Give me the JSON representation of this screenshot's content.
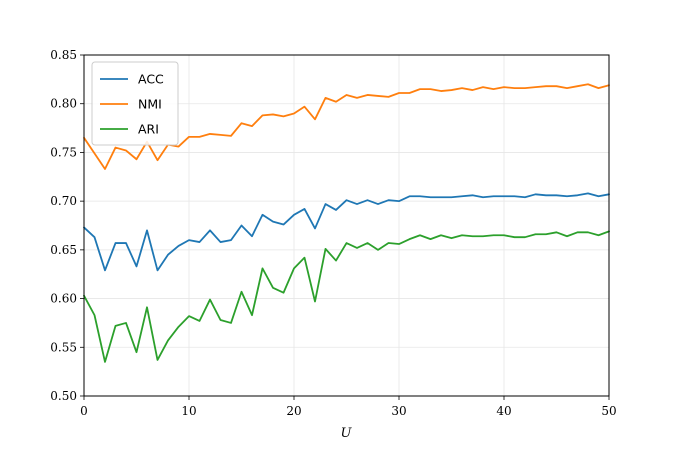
{
  "chart_data": {
    "type": "line",
    "xlabel": "U",
    "ylabel": "",
    "xlim": [
      0,
      50
    ],
    "ylim": [
      0.5,
      0.85
    ],
    "xticks": [
      0,
      10,
      20,
      30,
      40,
      50
    ],
    "yticks": [
      0.5,
      0.55,
      0.6,
      0.65,
      0.7,
      0.75,
      0.8,
      0.85
    ],
    "grid": true,
    "legend": "top-left",
    "x": [
      0,
      1,
      2,
      3,
      4,
      5,
      6,
      7,
      8,
      9,
      10,
      11,
      12,
      13,
      14,
      15,
      16,
      17,
      18,
      19,
      20,
      21,
      22,
      23,
      24,
      25,
      26,
      27,
      28,
      29,
      30,
      31,
      32,
      33,
      34,
      35,
      36,
      37,
      38,
      39,
      40,
      41,
      42,
      43,
      44,
      45,
      46,
      47,
      48,
      49,
      50
    ],
    "series": [
      {
        "name": "ACC",
        "color": "#1f77b4",
        "values": [
          0.673,
          0.663,
          0.629,
          0.657,
          0.657,
          0.633,
          0.67,
          0.629,
          0.645,
          0.654,
          0.66,
          0.658,
          0.67,
          0.658,
          0.66,
          0.675,
          0.664,
          0.686,
          0.679,
          0.676,
          0.686,
          0.692,
          0.672,
          0.697,
          0.691,
          0.701,
          0.697,
          0.701,
          0.697,
          0.701,
          0.7,
          0.705,
          0.705,
          0.704,
          0.704,
          0.704,
          0.705,
          0.706,
          0.704,
          0.705,
          0.705,
          0.705,
          0.704,
          0.707,
          0.706,
          0.706,
          0.705,
          0.706,
          0.708,
          0.705,
          0.707
        ]
      },
      {
        "name": "NMI",
        "color": "#ff7f0e",
        "values": [
          0.765,
          0.749,
          0.733,
          0.755,
          0.752,
          0.743,
          0.761,
          0.742,
          0.758,
          0.756,
          0.766,
          0.766,
          0.769,
          0.768,
          0.767,
          0.78,
          0.777,
          0.788,
          0.789,
          0.787,
          0.79,
          0.797,
          0.784,
          0.806,
          0.802,
          0.809,
          0.806,
          0.809,
          0.808,
          0.807,
          0.811,
          0.811,
          0.815,
          0.815,
          0.813,
          0.814,
          0.816,
          0.814,
          0.817,
          0.815,
          0.817,
          0.816,
          0.816,
          0.817,
          0.818,
          0.818,
          0.816,
          0.818,
          0.82,
          0.816,
          0.819
        ]
      },
      {
        "name": "ARI",
        "color": "#2ca02c",
        "values": [
          0.603,
          0.583,
          0.535,
          0.572,
          0.575,
          0.545,
          0.591,
          0.537,
          0.557,
          0.571,
          0.582,
          0.577,
          0.599,
          0.578,
          0.575,
          0.607,
          0.583,
          0.631,
          0.611,
          0.606,
          0.631,
          0.642,
          0.597,
          0.651,
          0.639,
          0.657,
          0.652,
          0.657,
          0.65,
          0.657,
          0.656,
          0.661,
          0.665,
          0.661,
          0.665,
          0.662,
          0.665,
          0.664,
          0.664,
          0.665,
          0.665,
          0.663,
          0.663,
          0.666,
          0.666,
          0.668,
          0.664,
          0.668,
          0.668,
          0.665,
          0.669
        ]
      }
    ]
  }
}
